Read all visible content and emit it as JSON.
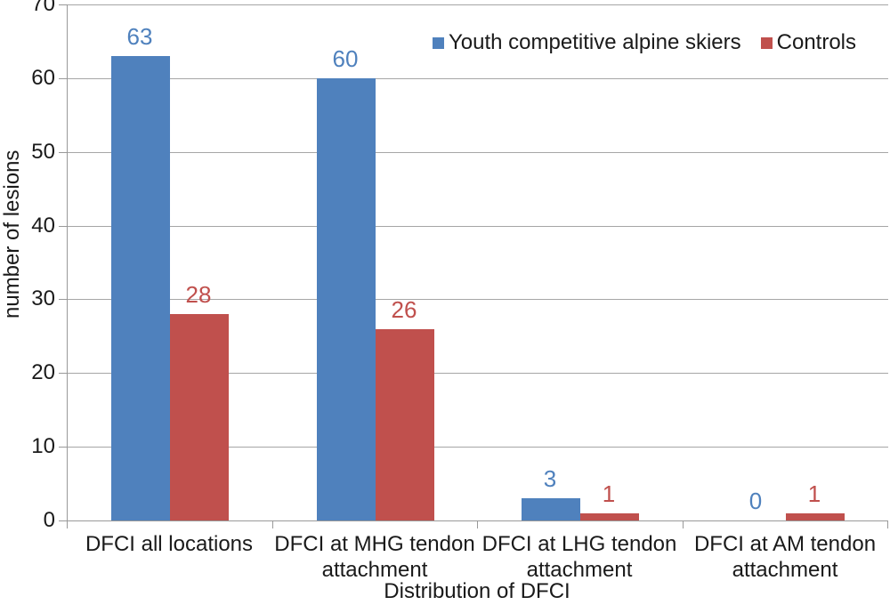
{
  "chart_data": {
    "type": "bar",
    "title": "",
    "xlabel": "Distribution of DFCI",
    "ylabel": "number of lesions",
    "categories": [
      "DFCI all locations",
      "DFCI at MHG tendon attachment",
      "DFCI at LHG tendon attachment",
      "DFCI at AM tendon attachment"
    ],
    "series": [
      {
        "name": "Youth competitive alpine skiers",
        "color": "#4F81BD",
        "values": [
          63,
          60,
          3,
          0
        ]
      },
      {
        "name": "Controls",
        "color": "#C0504D",
        "values": [
          28,
          26,
          1,
          1
        ]
      }
    ],
    "ylim": [
      0,
      70
    ],
    "yticks": [
      0,
      10,
      20,
      30,
      40,
      50,
      60,
      70
    ],
    "grid": "horizontal",
    "legend_position": "top-right",
    "value_labels": true
  },
  "colors": {
    "skiers_bar": "#4F81BD",
    "controls_bar": "#C0504D",
    "gridline": "#A6A6A6",
    "axis_line": "#999999",
    "text": "#1A1A1A",
    "background": "#FFFFFF"
  }
}
